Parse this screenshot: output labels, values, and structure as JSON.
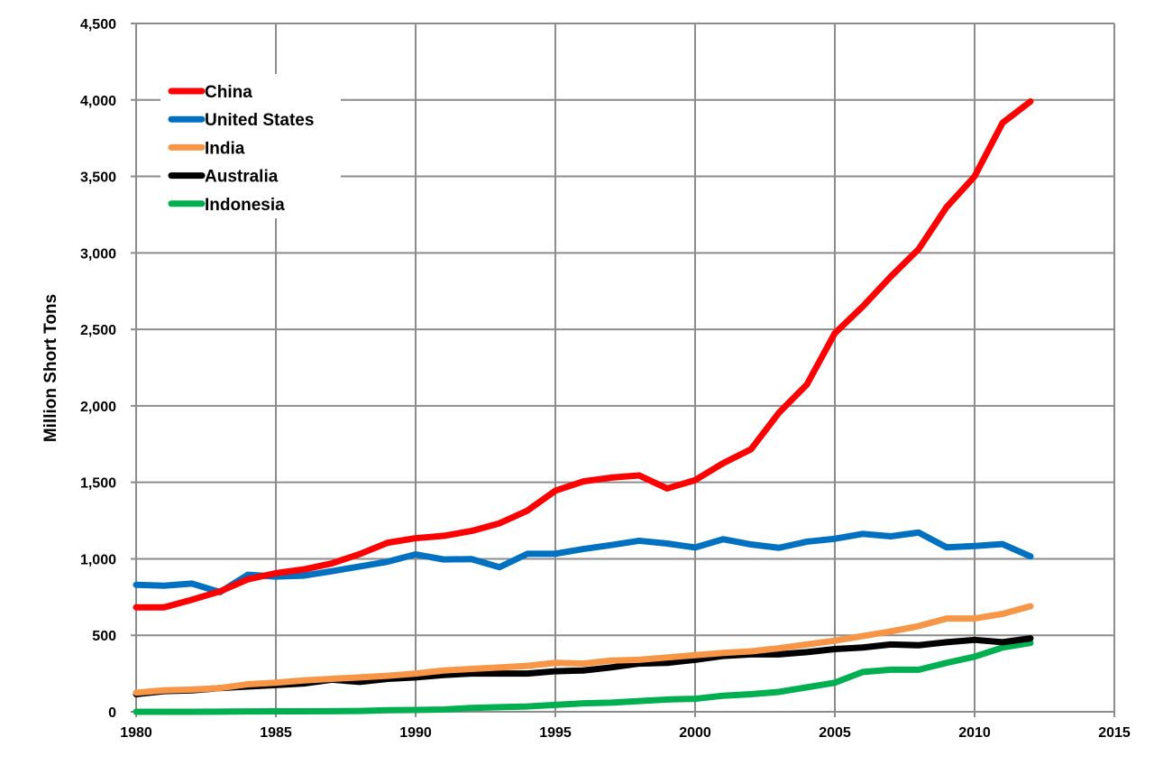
{
  "chart_data": {
    "type": "line",
    "title": "",
    "xlabel": "",
    "ylabel": "Million Short Tons",
    "xlim": [
      1980,
      2015
    ],
    "ylim": [
      0,
      4500
    ],
    "grid": true,
    "legend_position": "top-left",
    "x_ticks": [
      "1980",
      "1985",
      "1990",
      "1995",
      "2000",
      "2005",
      "2010",
      "2015"
    ],
    "x_tick_values": [
      1980,
      1985,
      1990,
      1995,
      2000,
      2005,
      2010,
      2015
    ],
    "y_ticks": [
      "0",
      "500",
      "1,000",
      "1,500",
      "2,000",
      "2,500",
      "3,000",
      "3,500",
      "4,000",
      "4,500"
    ],
    "y_tick_values": [
      0,
      500,
      1000,
      1500,
      2000,
      2500,
      3000,
      3500,
      4000,
      4500
    ],
    "x": [
      1980,
      1981,
      1982,
      1983,
      1984,
      1985,
      1986,
      1987,
      1988,
      1989,
      1990,
      1991,
      1992,
      1993,
      1994,
      1995,
      1996,
      1997,
      1998,
      1999,
      2000,
      2001,
      2002,
      2003,
      2004,
      2005,
      2006,
      2007,
      2008,
      2009,
      2010,
      2011,
      2012
    ],
    "series": [
      {
        "name": "China",
        "color": "#ff0000",
        "values": [
          683,
          683,
          733,
          787,
          866,
          906,
          931,
          970,
          1031,
          1105,
          1135,
          1150,
          1182,
          1232,
          1315,
          1445,
          1506,
          1531,
          1545,
          1460,
          1514,
          1625,
          1716,
          1955,
          2140,
          2475,
          2650,
          2845,
          3025,
          3300,
          3500,
          3850,
          3990
        ]
      },
      {
        "name": "United States",
        "color": "#0070c0",
        "values": [
          830,
          824,
          838,
          782,
          896,
          884,
          890,
          919,
          950,
          981,
          1029,
          996,
          998,
          945,
          1033,
          1033,
          1064,
          1090,
          1118,
          1100,
          1074,
          1128,
          1094,
          1072,
          1112,
          1131,
          1163,
          1147,
          1172,
          1075,
          1084,
          1096,
          1016
        ]
      },
      {
        "name": "India",
        "color": "#f79646",
        "values": [
          125,
          140,
          145,
          155,
          180,
          190,
          205,
          215,
          225,
          235,
          250,
          270,
          280,
          290,
          300,
          320,
          315,
          335,
          340,
          355,
          370,
          385,
          395,
          415,
          440,
          465,
          495,
          525,
          560,
          610,
          610,
          640,
          690
        ]
      },
      {
        "name": "Australia",
        "color": "#000000",
        "values": [
          115,
          135,
          140,
          155,
          165,
          175,
          185,
          210,
          195,
          215,
          225,
          240,
          250,
          250,
          250,
          265,
          270,
          290,
          315,
          320,
          340,
          365,
          375,
          375,
          390,
          410,
          420,
          440,
          435,
          455,
          470,
          455,
          480
        ]
      },
      {
        "name": "Indonesia",
        "color": "#00b050",
        "values": [
          0,
          0,
          0,
          1,
          2,
          3,
          3,
          4,
          5,
          10,
          12,
          15,
          25,
          30,
          35,
          45,
          55,
          60,
          70,
          80,
          85,
          105,
          115,
          130,
          160,
          190,
          260,
          275,
          275,
          320,
          360,
          420,
          450
        ]
      }
    ]
  }
}
